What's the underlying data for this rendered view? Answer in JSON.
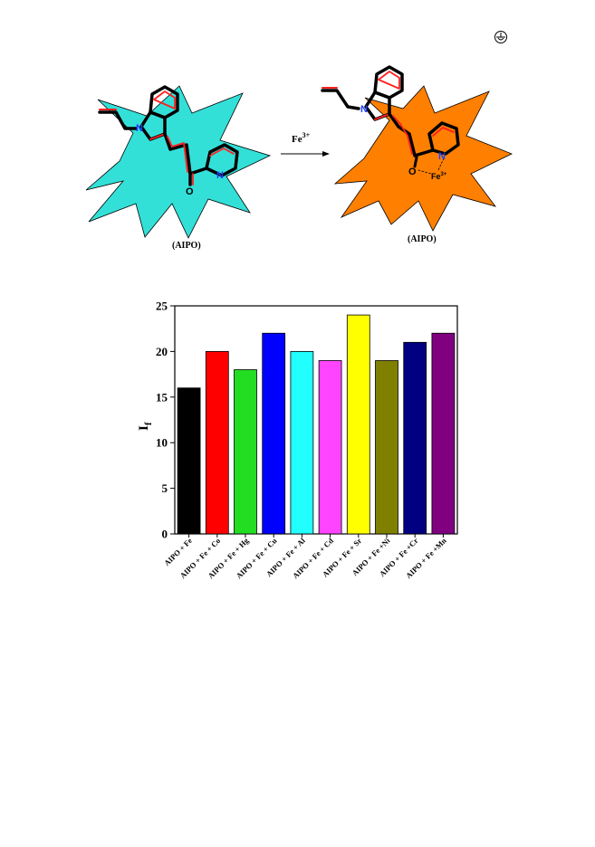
{
  "scheme": {
    "left_label": "(AIPO)",
    "right_label": "(AIPO)",
    "arrow_label_base": "Fe",
    "arrow_label_sup": "3+",
    "complex_ion_base": "Fe",
    "complex_ion_sup": "3+",
    "atoms": {
      "nitrogen": "N",
      "oxygen": "O"
    },
    "colors": {
      "left_star": "#33e0d8",
      "right_star": "#ff7f00",
      "highlight": "#ff2020",
      "nitrogen": "#1f3fff"
    }
  },
  "corner_icon": "circled-glyph-icon",
  "chart_data": {
    "type": "bar",
    "ylabel": "I",
    "ylabel_sub": "f",
    "ylim": [
      0,
      25
    ],
    "yticks": [
      0,
      5,
      10,
      15,
      20,
      25
    ],
    "categories": [
      "AIPO + Fe",
      "AIPO + Fe + Co",
      "AIPO + Fe + Hg",
      "AIPO + Fe + Cu",
      "AIPO + Fe + Al",
      "AIPO + Fe + Cd",
      "AIPO + Fe + Sr",
      "AIPO + Fe +Ni",
      "AIPO + Fe +Cr",
      "AIPO + Fe +Mn"
    ],
    "values": [
      16,
      20,
      18,
      22,
      20,
      19,
      24,
      19,
      21,
      22
    ],
    "colors": [
      "#000000",
      "#ff0000",
      "#22dd22",
      "#0000ff",
      "#22ffff",
      "#ff44ff",
      "#ffff00",
      "#808000",
      "#000080",
      "#800080"
    ]
  }
}
